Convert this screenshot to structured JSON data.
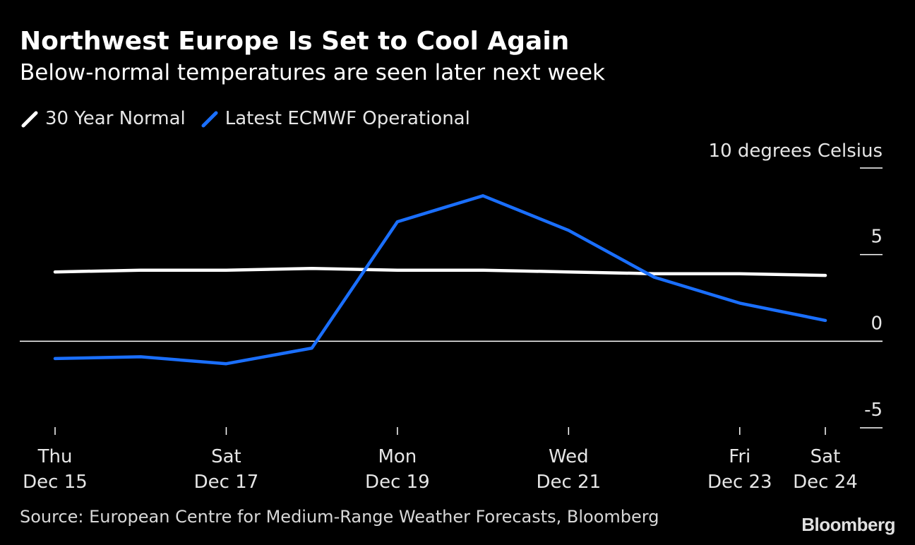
{
  "header": {
    "title": "Northwest Europe Is Set to Cool Again",
    "subtitle": "Below-normal temperatures are seen later next week"
  },
  "legend": {
    "items": [
      {
        "label": "30 Year Normal",
        "color": "#ffffff"
      },
      {
        "label": "Latest ECMWF Operational",
        "color": "#1a6fff"
      }
    ]
  },
  "footer": {
    "source": "Source: European Centre for Medium-Range Weather Forecasts, Bloomberg",
    "brand": "Bloomberg"
  },
  "chart_data": {
    "type": "line",
    "title": "Northwest Europe Is Set to Cool Again",
    "subtitle": "Below-normal temperatures are seen later next week",
    "ylabel": "10 degrees Celsius",
    "ylim": [
      -5,
      10
    ],
    "yticks": [
      10,
      5,
      0,
      -5
    ],
    "ytick_labels": [
      "",
      "5",
      "0",
      "-5"
    ],
    "zero_line": true,
    "grid": false,
    "legend_position": "top-left",
    "x": [
      "Dec 15",
      "Dec 16",
      "Dec 17",
      "Dec 18",
      "Dec 19",
      "Dec 20",
      "Dec 21",
      "Dec 22",
      "Dec 23",
      "Dec 24"
    ],
    "xticks": [
      {
        "index": 0,
        "day": "Thu",
        "date": "Dec 15"
      },
      {
        "index": 2,
        "day": "Sat",
        "date": "Dec 17"
      },
      {
        "index": 4,
        "day": "Mon",
        "date": "Dec 19"
      },
      {
        "index": 6,
        "day": "Wed",
        "date": "Dec 21"
      },
      {
        "index": 8,
        "day": "Fri",
        "date": "Dec 23"
      },
      {
        "index": 9,
        "day": "Sat",
        "date": "Dec 24"
      }
    ],
    "series": [
      {
        "name": "30 Year Normal",
        "color": "#ffffff",
        "values": [
          4.0,
          4.1,
          4.1,
          4.2,
          4.1,
          4.1,
          4.0,
          3.9,
          3.9,
          3.8
        ]
      },
      {
        "name": "Latest ECMWF Operational",
        "color": "#1a6fff",
        "values": [
          -1.0,
          -0.9,
          -1.3,
          -0.4,
          6.9,
          8.4,
          6.4,
          3.7,
          2.2,
          1.2
        ]
      }
    ]
  }
}
